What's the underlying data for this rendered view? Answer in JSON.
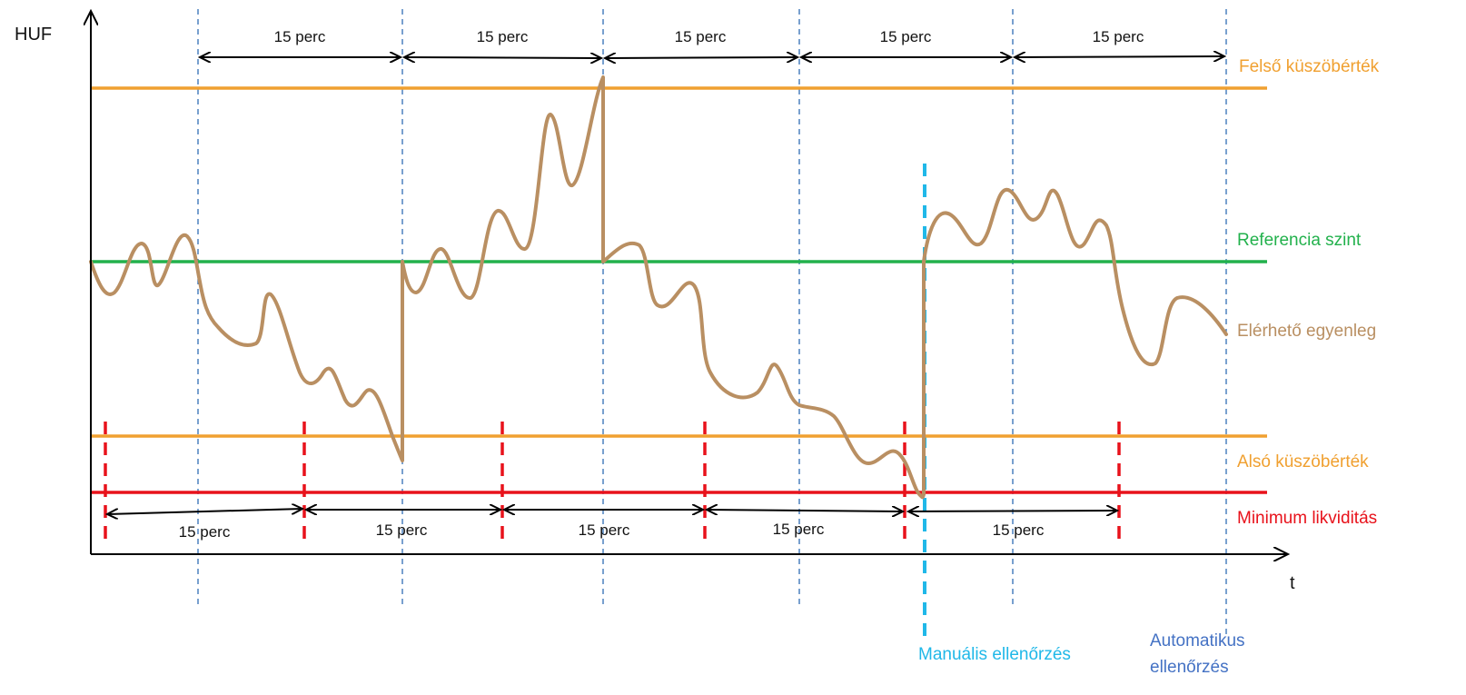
{
  "axes": {
    "y_label": "HUF",
    "x_label": "t"
  },
  "levels": {
    "upper_threshold": {
      "label": "Felső küszöbérték",
      "color": "#F0A030"
    },
    "reference": {
      "label": "Referencia szint",
      "color": "#22B14C"
    },
    "balance": {
      "label": "Elérhető egyenleg",
      "color": "#B98F62"
    },
    "lower_threshold": {
      "label": "Alsó küszöbérték",
      "color": "#F0A030"
    },
    "minimum": {
      "label": "Minimum likviditás",
      "color": "#E8121B"
    }
  },
  "checks": {
    "manual": {
      "label": "Manuális ellenőrzés",
      "color": "#20B8E8"
    },
    "automatic": {
      "label_line1": "Automatikus",
      "label_line2": "ellenőrzés",
      "color": "#4472C4"
    }
  },
  "intervals": {
    "top": [
      "15 perc",
      "15 perc",
      "15 perc",
      "15 perc",
      "15 perc"
    ],
    "bottom": [
      "15 perc",
      "15 perc",
      "15 perc",
      "15 perc",
      "15 perc"
    ]
  }
}
